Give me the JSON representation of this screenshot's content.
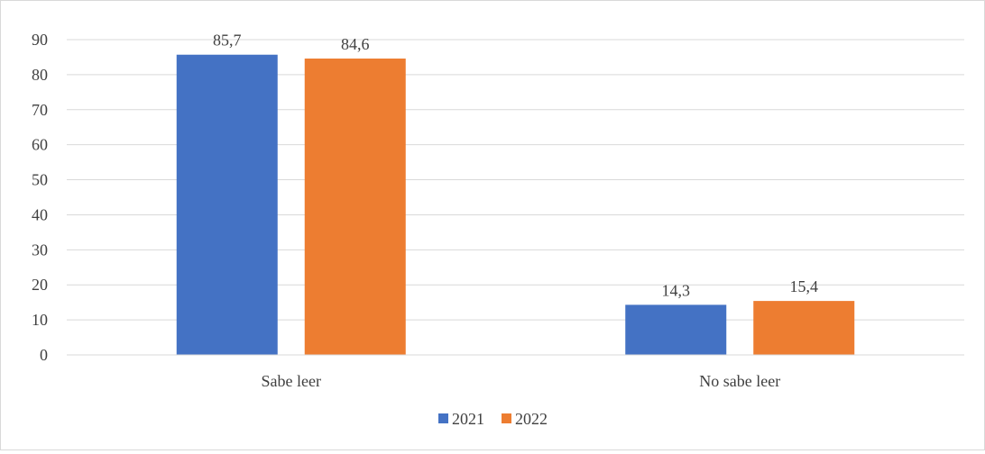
{
  "chart_data": {
    "type": "bar",
    "categories": [
      "Sabe leer",
      "No sabe leer"
    ],
    "series": [
      {
        "name": "2021",
        "values": [
          85.7,
          14.3
        ],
        "labels": [
          "85,7",
          "14,3"
        ],
        "color": "#4472C4"
      },
      {
        "name": "2022",
        "values": [
          84.6,
          15.4
        ],
        "labels": [
          "84,6",
          "15,4"
        ],
        "color": "#ED7D31"
      }
    ],
    "title": "",
    "xlabel": "",
    "ylabel": "",
    "ylim": [
      0,
      90
    ],
    "yticks": [
      "0",
      "10",
      "20",
      "30",
      "40",
      "50",
      "60",
      "70",
      "80",
      "90"
    ],
    "grid": true,
    "legend_position": "bottom"
  }
}
